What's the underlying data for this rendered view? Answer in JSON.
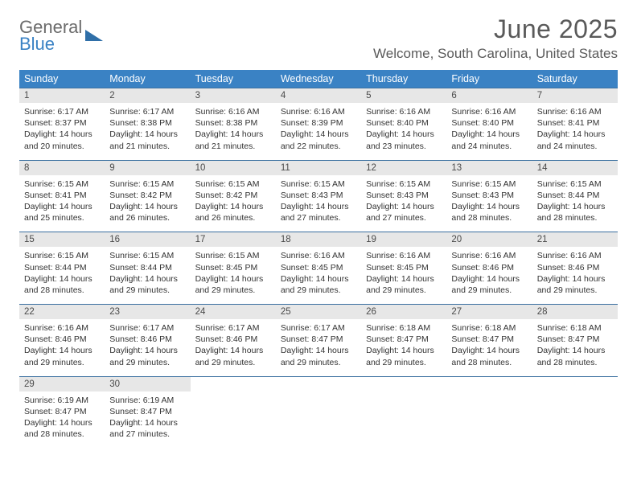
{
  "brand": {
    "line1": "General",
    "line2": "Blue"
  },
  "title": "June 2025",
  "location": "Welcome, South Carolina, United States",
  "colors": {
    "header_bg": "#3a82c4",
    "header_text": "#ffffff",
    "daynum_bg": "#e7e7e7",
    "body_text": "#333333",
    "rule": "#3a6fa0",
    "title_text": "#5a5a5a"
  },
  "dow": [
    "Sunday",
    "Monday",
    "Tuesday",
    "Wednesday",
    "Thursday",
    "Friday",
    "Saturday"
  ],
  "weeks": [
    [
      {
        "n": "1",
        "sr": "Sunrise: 6:17 AM",
        "ss": "Sunset: 8:37 PM",
        "d1": "Daylight: 14 hours",
        "d2": "and 20 minutes."
      },
      {
        "n": "2",
        "sr": "Sunrise: 6:17 AM",
        "ss": "Sunset: 8:38 PM",
        "d1": "Daylight: 14 hours",
        "d2": "and 21 minutes."
      },
      {
        "n": "3",
        "sr": "Sunrise: 6:16 AM",
        "ss": "Sunset: 8:38 PM",
        "d1": "Daylight: 14 hours",
        "d2": "and 21 minutes."
      },
      {
        "n": "4",
        "sr": "Sunrise: 6:16 AM",
        "ss": "Sunset: 8:39 PM",
        "d1": "Daylight: 14 hours",
        "d2": "and 22 minutes."
      },
      {
        "n": "5",
        "sr": "Sunrise: 6:16 AM",
        "ss": "Sunset: 8:40 PM",
        "d1": "Daylight: 14 hours",
        "d2": "and 23 minutes."
      },
      {
        "n": "6",
        "sr": "Sunrise: 6:16 AM",
        "ss": "Sunset: 8:40 PM",
        "d1": "Daylight: 14 hours",
        "d2": "and 24 minutes."
      },
      {
        "n": "7",
        "sr": "Sunrise: 6:16 AM",
        "ss": "Sunset: 8:41 PM",
        "d1": "Daylight: 14 hours",
        "d2": "and 24 minutes."
      }
    ],
    [
      {
        "n": "8",
        "sr": "Sunrise: 6:15 AM",
        "ss": "Sunset: 8:41 PM",
        "d1": "Daylight: 14 hours",
        "d2": "and 25 minutes."
      },
      {
        "n": "9",
        "sr": "Sunrise: 6:15 AM",
        "ss": "Sunset: 8:42 PM",
        "d1": "Daylight: 14 hours",
        "d2": "and 26 minutes."
      },
      {
        "n": "10",
        "sr": "Sunrise: 6:15 AM",
        "ss": "Sunset: 8:42 PM",
        "d1": "Daylight: 14 hours",
        "d2": "and 26 minutes."
      },
      {
        "n": "11",
        "sr": "Sunrise: 6:15 AM",
        "ss": "Sunset: 8:43 PM",
        "d1": "Daylight: 14 hours",
        "d2": "and 27 minutes."
      },
      {
        "n": "12",
        "sr": "Sunrise: 6:15 AM",
        "ss": "Sunset: 8:43 PM",
        "d1": "Daylight: 14 hours",
        "d2": "and 27 minutes."
      },
      {
        "n": "13",
        "sr": "Sunrise: 6:15 AM",
        "ss": "Sunset: 8:43 PM",
        "d1": "Daylight: 14 hours",
        "d2": "and 28 minutes."
      },
      {
        "n": "14",
        "sr": "Sunrise: 6:15 AM",
        "ss": "Sunset: 8:44 PM",
        "d1": "Daylight: 14 hours",
        "d2": "and 28 minutes."
      }
    ],
    [
      {
        "n": "15",
        "sr": "Sunrise: 6:15 AM",
        "ss": "Sunset: 8:44 PM",
        "d1": "Daylight: 14 hours",
        "d2": "and 28 minutes."
      },
      {
        "n": "16",
        "sr": "Sunrise: 6:15 AM",
        "ss": "Sunset: 8:44 PM",
        "d1": "Daylight: 14 hours",
        "d2": "and 29 minutes."
      },
      {
        "n": "17",
        "sr": "Sunrise: 6:15 AM",
        "ss": "Sunset: 8:45 PM",
        "d1": "Daylight: 14 hours",
        "d2": "and 29 minutes."
      },
      {
        "n": "18",
        "sr": "Sunrise: 6:16 AM",
        "ss": "Sunset: 8:45 PM",
        "d1": "Daylight: 14 hours",
        "d2": "and 29 minutes."
      },
      {
        "n": "19",
        "sr": "Sunrise: 6:16 AM",
        "ss": "Sunset: 8:45 PM",
        "d1": "Daylight: 14 hours",
        "d2": "and 29 minutes."
      },
      {
        "n": "20",
        "sr": "Sunrise: 6:16 AM",
        "ss": "Sunset: 8:46 PM",
        "d1": "Daylight: 14 hours",
        "d2": "and 29 minutes."
      },
      {
        "n": "21",
        "sr": "Sunrise: 6:16 AM",
        "ss": "Sunset: 8:46 PM",
        "d1": "Daylight: 14 hours",
        "d2": "and 29 minutes."
      }
    ],
    [
      {
        "n": "22",
        "sr": "Sunrise: 6:16 AM",
        "ss": "Sunset: 8:46 PM",
        "d1": "Daylight: 14 hours",
        "d2": "and 29 minutes."
      },
      {
        "n": "23",
        "sr": "Sunrise: 6:17 AM",
        "ss": "Sunset: 8:46 PM",
        "d1": "Daylight: 14 hours",
        "d2": "and 29 minutes."
      },
      {
        "n": "24",
        "sr": "Sunrise: 6:17 AM",
        "ss": "Sunset: 8:46 PM",
        "d1": "Daylight: 14 hours",
        "d2": "and 29 minutes."
      },
      {
        "n": "25",
        "sr": "Sunrise: 6:17 AM",
        "ss": "Sunset: 8:47 PM",
        "d1": "Daylight: 14 hours",
        "d2": "and 29 minutes."
      },
      {
        "n": "26",
        "sr": "Sunrise: 6:18 AM",
        "ss": "Sunset: 8:47 PM",
        "d1": "Daylight: 14 hours",
        "d2": "and 29 minutes."
      },
      {
        "n": "27",
        "sr": "Sunrise: 6:18 AM",
        "ss": "Sunset: 8:47 PM",
        "d1": "Daylight: 14 hours",
        "d2": "and 28 minutes."
      },
      {
        "n": "28",
        "sr": "Sunrise: 6:18 AM",
        "ss": "Sunset: 8:47 PM",
        "d1": "Daylight: 14 hours",
        "d2": "and 28 minutes."
      }
    ],
    [
      {
        "n": "29",
        "sr": "Sunrise: 6:19 AM",
        "ss": "Sunset: 8:47 PM",
        "d1": "Daylight: 14 hours",
        "d2": "and 28 minutes."
      },
      {
        "n": "30",
        "sr": "Sunrise: 6:19 AM",
        "ss": "Sunset: 8:47 PM",
        "d1": "Daylight: 14 hours",
        "d2": "and 27 minutes."
      },
      null,
      null,
      null,
      null,
      null
    ]
  ]
}
